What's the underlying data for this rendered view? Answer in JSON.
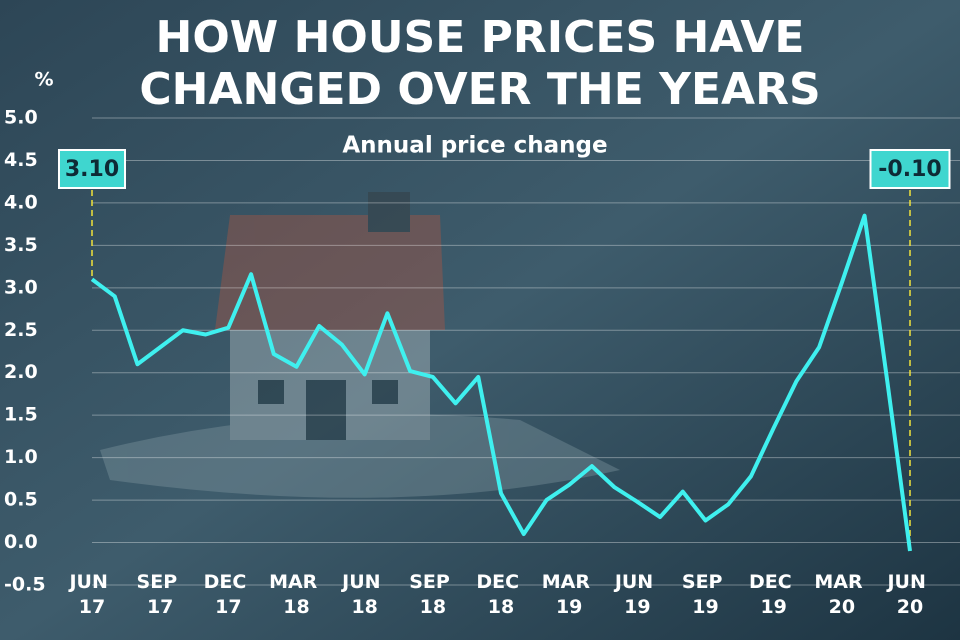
{
  "chart_data": {
    "type": "line",
    "title": [
      "HOW HOUSE PRICES HAVE",
      "CHANGED OVER THE YEARS"
    ],
    "y_label": "%",
    "subtitle": "Annual price change",
    "categories": [
      "JUN 17",
      null,
      null,
      "SEP 17",
      null,
      null,
      "DEC 17",
      null,
      null,
      "MAR 18",
      null,
      null,
      "JUN 18",
      null,
      null,
      "SEP 18",
      null,
      null,
      "DEC 18",
      null,
      null,
      "MAR 19",
      null,
      null,
      "JUN 19",
      null,
      null,
      "SEP 19",
      null,
      null,
      "DEC 19",
      null,
      null,
      "MAR 20",
      null,
      null,
      "JUN 20"
    ],
    "series": [
      {
        "name": "Annual price change",
        "color": "#3ff0ef",
        "values": [
          3.1,
          2.9,
          2.1,
          2.3,
          2.5,
          2.45,
          2.53,
          3.16,
          2.22,
          2.07,
          2.55,
          2.33,
          1.98,
          2.7,
          2.02,
          1.95,
          1.64,
          1.95,
          0.58,
          0.1,
          0.5,
          0.68,
          0.9,
          0.65,
          0.48,
          0.3,
          0.6,
          0.26,
          0.45,
          0.78,
          1.35,
          1.9,
          2.3,
          3.06,
          3.85,
          1.9,
          -0.1
        ],
        "value_labels": [
          "3.10",
          null,
          null,
          null,
          null,
          null,
          null,
          null,
          null,
          null,
          null,
          null,
          null,
          null,
          null,
          null,
          null,
          null,
          null,
          null,
          null,
          null,
          null,
          null,
          null,
          null,
          null,
          null,
          null,
          null,
          null,
          null,
          null,
          null,
          null,
          null,
          "-0.10"
        ]
      }
    ],
    "ylim": [
      -0.5,
      5.0
    ],
    "yticks": [
      {
        "value": -0.5,
        "label": "-0.5"
      },
      {
        "value": 0,
        "label": "0.0"
      },
      {
        "value": 0.5,
        "label": "0.5"
      },
      {
        "value": 1,
        "label": "1.0"
      },
      {
        "value": 1.5,
        "label": "1.5"
      },
      {
        "value": 2,
        "label": "2.0"
      },
      {
        "value": 2.5,
        "label": "2.5"
      },
      {
        "value": 3,
        "label": "3.0"
      },
      {
        "value": 3.5,
        "label": "3.5"
      },
      {
        "value": 4,
        "label": "4.0"
      },
      {
        "value": 4.5,
        "label": "4.5"
      },
      {
        "value": 5,
        "label": "5.0"
      }
    ],
    "grid": true
  }
}
